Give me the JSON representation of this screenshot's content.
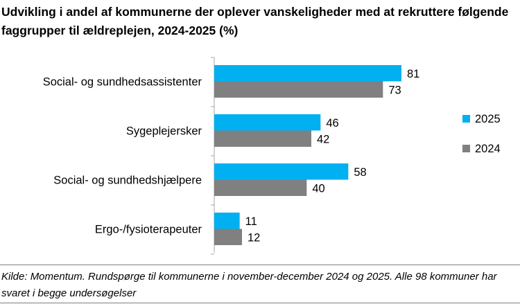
{
  "chart_data": {
    "type": "bar",
    "orientation": "horizontal",
    "title": "Udvikling i andel af kommunerne der oplever vanskeligheder med at rekruttere følgende faggrupper til ældreplejen, 2024-2025 (%)",
    "categories": [
      "Social- og sundhedsassistenter",
      "Sygeplejersker",
      "Social- og sundhedshjælpere",
      "Ergo-/fysioterapeuter"
    ],
    "series": [
      {
        "name": "2025",
        "values": [
          81,
          46,
          58,
          11
        ],
        "color": "#00B0F0"
      },
      {
        "name": "2024",
        "values": [
          73,
          42,
          40,
          12
        ],
        "color": "#808080"
      }
    ],
    "xlim": [
      0,
      100
    ],
    "grid": false,
    "legend": "right",
    "data_labels": true
  },
  "footnote": "Kilde: Momentum. Rundspørge til kommunerne i november-december 2024 og 2025. Alle 98 kommuner har svaret i begge undersøgelser"
}
